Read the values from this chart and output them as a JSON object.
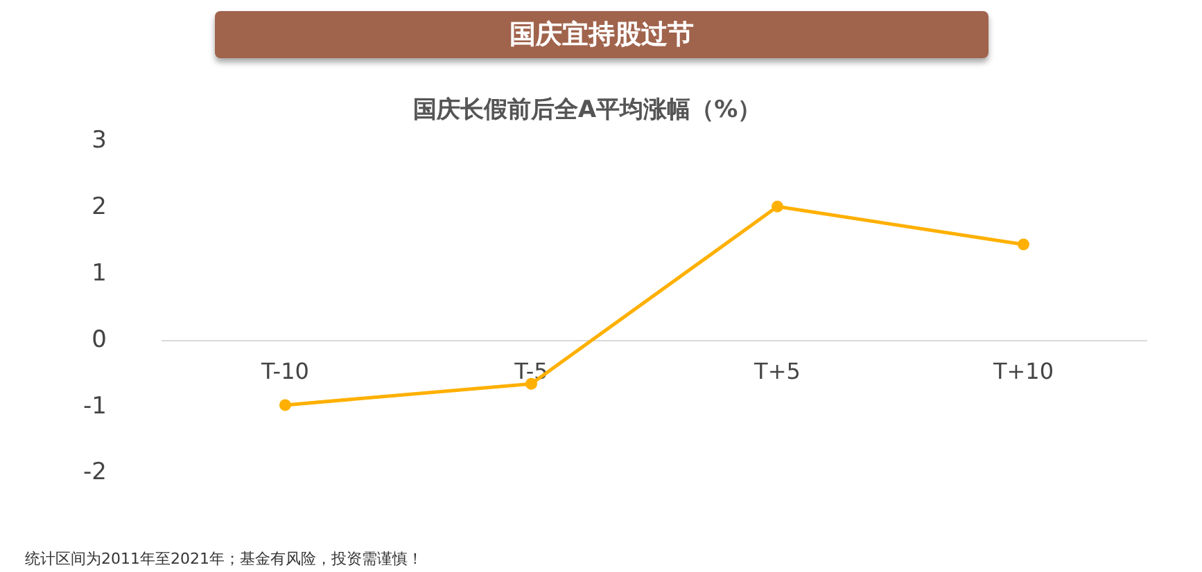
{
  "chart_data": {
    "type": "line",
    "title": "国庆宜持股过节",
    "subtitle": "国庆长假前后全A平均涨幅（%）",
    "categories": [
      "T-10",
      "T-5",
      "T+5",
      "T+10"
    ],
    "series": [
      {
        "color": "#ffb000",
        "values": [
          -0.97,
          -0.65,
          2.02,
          1.45
        ]
      }
    ],
    "ylim": [
      -2,
      3
    ],
    "yticks": [
      -2,
      -1,
      0,
      1,
      2,
      3
    ],
    "grid": false,
    "legend": false,
    "marker": "circle",
    "line_style": "solid",
    "annotations": [
      "统计区间为2011年至2021年；基金有风险，投资需谨慎！"
    ]
  }
}
